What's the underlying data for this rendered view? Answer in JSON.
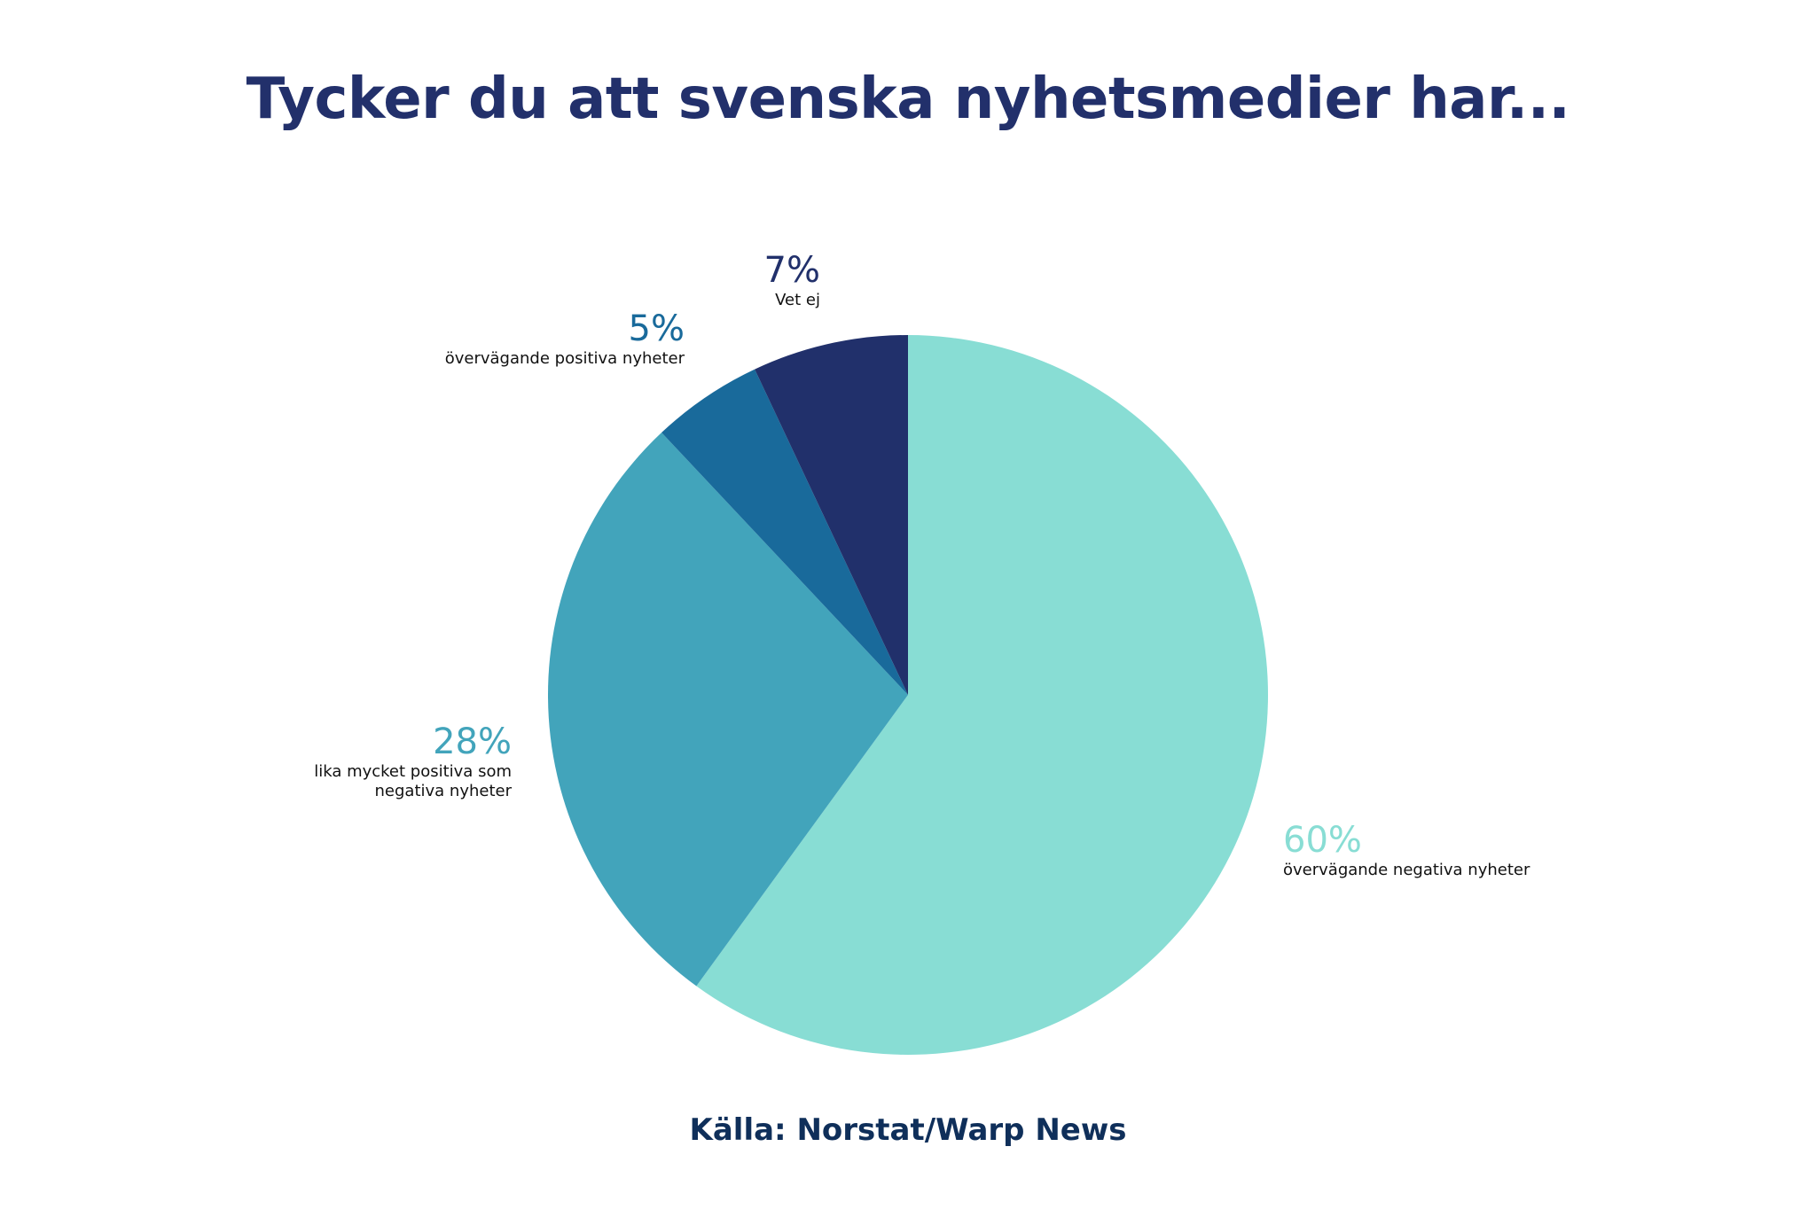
{
  "chart_data": {
    "type": "pie",
    "title": "Tycker du att svenska nyhetsmedier har...",
    "categories": [
      "övervägande negativa nyheter",
      "lika mycket positiva som negativa nyheter",
      "övervägande positiva nyheter",
      "Vet ej"
    ],
    "values": [
      60,
      28,
      5,
      7
    ],
    "value_labels": [
      "60%",
      "28%",
      "5%",
      "7%"
    ],
    "colors": [
      "#88ddd4",
      "#42a4bb",
      "#196a9b",
      "#21306b"
    ],
    "source": "Källa: Norstat/Warp News"
  }
}
